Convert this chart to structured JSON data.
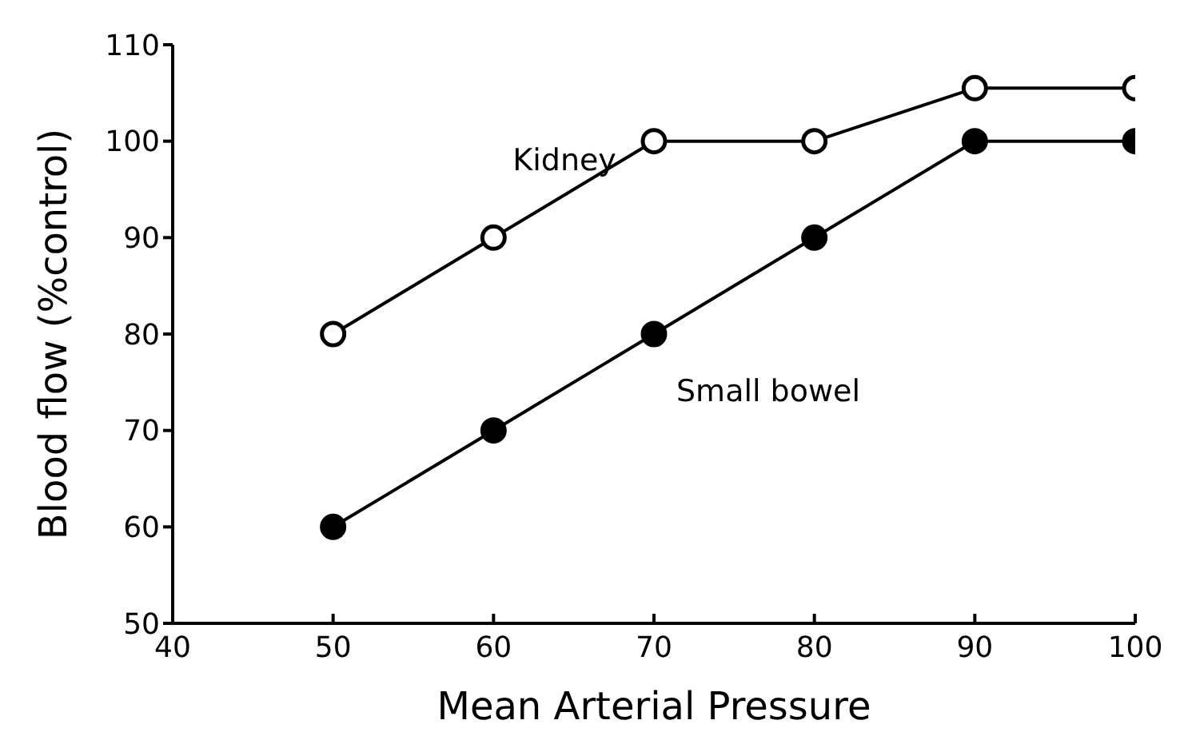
{
  "chart_data": {
    "type": "line",
    "xlabel": "Mean Arterial Pressure",
    "ylabel": "Blood flow (%control)",
    "x": [
      50,
      60,
      70,
      80,
      90,
      100
    ],
    "series": [
      {
        "name": "Kidney",
        "color": "#000000",
        "values": [
          80,
          90,
          100,
          100,
          105.5,
          105.5
        ]
      },
      {
        "name": "Small bowel",
        "color": "#000000",
        "values": [
          60,
          70,
          80,
          90,
          100,
          100
        ]
      }
    ],
    "xlim": [
      40,
      100
    ],
    "xticks": [
      40,
      50,
      60,
      70,
      80,
      90,
      100
    ],
    "ylim": [
      50,
      110
    ],
    "yticks": [
      50,
      60,
      70,
      80,
      90,
      100,
      110
    ],
    "grid": false,
    "legend": false,
    "marker": "circle",
    "line_style": "solid"
  }
}
